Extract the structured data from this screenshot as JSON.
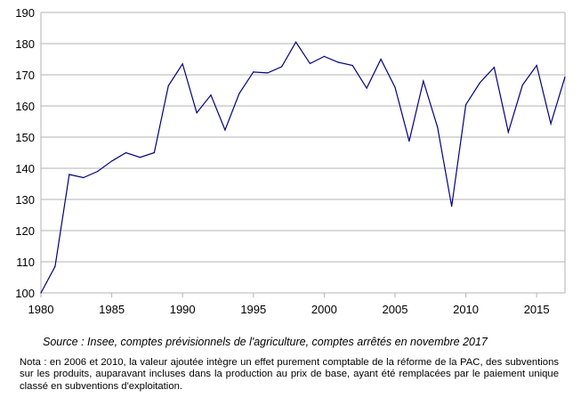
{
  "chart_data": {
    "type": "line",
    "title": "",
    "xlabel": "",
    "ylabel": "",
    "xlim": [
      1980,
      2017
    ],
    "ylim": [
      100,
      190
    ],
    "x_ticks": [
      1980,
      1985,
      1990,
      1995,
      2000,
      2005,
      2010,
      2015
    ],
    "y_ticks": [
      100,
      110,
      120,
      130,
      140,
      150,
      160,
      170,
      180,
      190
    ],
    "grid": "horizontal",
    "legend": "none",
    "line_color": "#000080",
    "series": [
      {
        "x": [
          1980,
          1981,
          1982,
          1983,
          1984,
          1985,
          1986,
          1987,
          1988,
          1989,
          1990,
          1991,
          1992,
          1993,
          1994,
          1995,
          1996,
          1997,
          1998,
          1999,
          2000,
          2001,
          2002,
          2003,
          2004,
          2005,
          2006,
          2007,
          2008,
          2009,
          2010,
          2011,
          2012,
          2013,
          2014,
          2015,
          2016,
          2017
        ],
        "values": [
          100,
          108.5,
          138,
          137,
          139,
          142.3,
          145,
          143.5,
          145,
          166.5,
          173.5,
          157.8,
          163.5,
          152.3,
          164,
          170.9,
          170.6,
          172.6,
          180.5,
          173.6,
          175.9,
          174,
          173,
          165.7,
          175,
          166,
          148.7,
          168,
          153.2,
          127.8,
          160.4,
          167.5,
          172.4,
          151.6,
          166.7,
          173,
          154.3,
          169.3
        ]
      }
    ]
  },
  "footer": {
    "source": "Source : Insee, comptes prévisionnels de l'agriculture, comptes arrêtés en novembre 2017",
    "note": "Nota : en 2006 et 2010, la valeur ajoutée intègre un effet purement comptable de la réforme de la PAC, des subventions sur les produits, auparavant incluses dans la production au prix de base, ayant été remplacées par le paiement unique classé en subventions d'exploitation."
  }
}
